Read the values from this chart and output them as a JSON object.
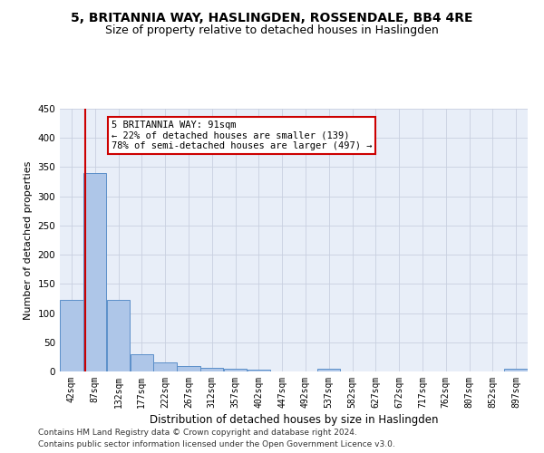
{
  "title1": "5, BRITANNIA WAY, HASLINGDEN, ROSSENDALE, BB4 4RE",
  "title2": "Size of property relative to detached houses in Haslingden",
  "xlabel": "Distribution of detached houses by size in Haslingden",
  "ylabel": "Number of detached properties",
  "bin_edges": [
    42,
    87,
    132,
    177,
    222,
    267,
    312,
    357,
    402,
    447,
    492,
    537,
    582,
    627,
    672,
    717,
    762,
    807,
    852,
    897,
    942
  ],
  "bar_heights": [
    122,
    340,
    122,
    29,
    15,
    9,
    6,
    4,
    3,
    0,
    0,
    5,
    0,
    0,
    0,
    0,
    0,
    0,
    0,
    5
  ],
  "bar_color": "#aec6e8",
  "bar_edge_color": "#5b8fc9",
  "grid_color": "#c8d0e0",
  "bg_color": "#e8eef8",
  "property_line_x": 91,
  "property_line_color": "#cc0000",
  "annotation_title": "5 BRITANNIA WAY: 91sqm",
  "annotation_line1": "← 22% of detached houses are smaller (139)",
  "annotation_line2": "78% of semi-detached houses are larger (497) →",
  "annotation_box_color": "#cc0000",
  "footer1": "Contains HM Land Registry data © Crown copyright and database right 2024.",
  "footer2": "Contains public sector information licensed under the Open Government Licence v3.0.",
  "ylim": [
    0,
    450
  ],
  "title1_fontsize": 10,
  "title2_fontsize": 9,
  "xlabel_fontsize": 8.5,
  "ylabel_fontsize": 8,
  "tick_fontsize": 7,
  "annotation_fontsize": 7.5,
  "footer_fontsize": 6.5
}
